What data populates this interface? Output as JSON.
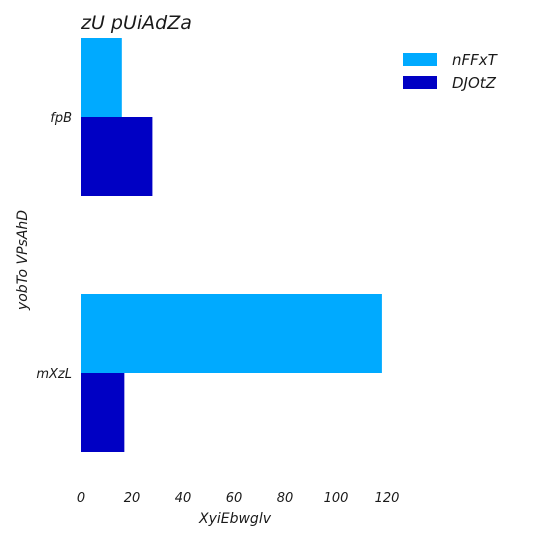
{
  "chart_data": {
    "type": "bar",
    "orientation": "horizontal",
    "title": "zU pUiAdZa",
    "xlabel": "XyiEbwglv",
    "ylabel": "yobTo VPsAhD",
    "categories": [
      "fpB",
      "mXzL"
    ],
    "series": [
      {
        "name": "nFFxT",
        "color": "#00aaff",
        "values": [
          16,
          118
        ]
      },
      {
        "name": "DJOtZ",
        "color": "#0000c4",
        "values": [
          28,
          17
        ]
      }
    ],
    "xlim": [
      0,
      120
    ],
    "x_ticks": [
      "0",
      "20",
      "40",
      "60",
      "80",
      "100",
      "120"
    ],
    "grid": false,
    "legend_position": "top-right"
  }
}
